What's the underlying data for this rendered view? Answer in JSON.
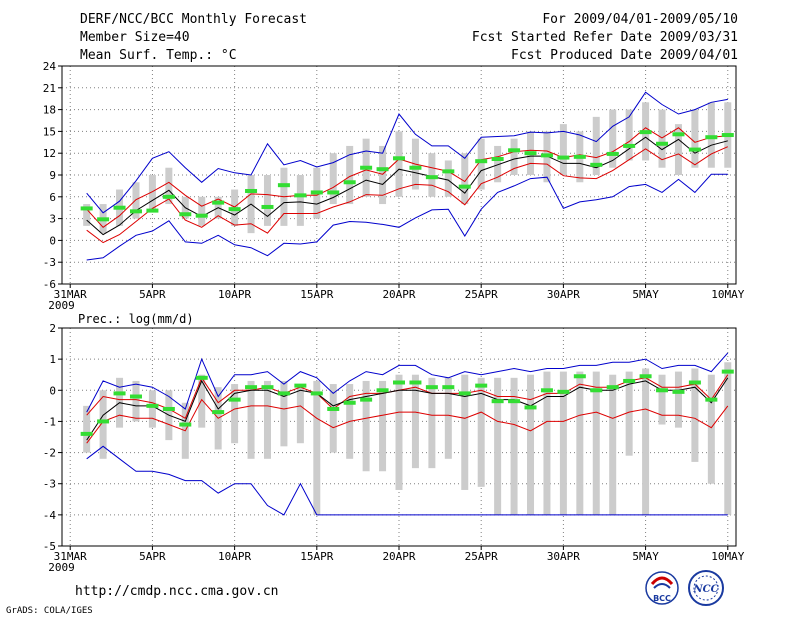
{
  "header": {
    "title": "DERF/NCC/BCC Monthly Forecast",
    "member_size": "Member Size=40",
    "variable": "Mean Surf. Temp.: °C",
    "period": "For 2009/04/01-2009/05/10",
    "fcst_started": "Fcst Started Refer Date 2009/03/31",
    "fcst_produced": "Fcst Produced Date 2009/04/01"
  },
  "footer": {
    "url": "http://cmdp.ncc.cma.gov.cn",
    "credit": "GrADS: COLA/IGES",
    "logo_bcc": "BCC",
    "logo_ncc": "NCC"
  },
  "colors": {
    "mean_line": "#000000",
    "spread_line": "#dd0000",
    "extreme_line": "#0000cc",
    "box": "#cccccc",
    "marker": "#33dd33",
    "grid": "#808080"
  },
  "chart_data": [
    {
      "type": "line",
      "title": "Mean Surf. Temp.: °C",
      "xlabel": "",
      "ylabel": "",
      "x_ticks": [
        "31MAR",
        "5APR",
        "10APR",
        "15APR",
        "20APR",
        "25APR",
        "30APR",
        "5MAY",
        "10MAY"
      ],
      "x_tick_days": [
        0,
        5,
        10,
        15,
        20,
        25,
        30,
        35,
        40
      ],
      "year_label": "2009",
      "ylim": [
        -6,
        24
      ],
      "y_ticks": [
        -6,
        -3,
        0,
        3,
        6,
        9,
        12,
        15,
        18,
        21,
        24
      ],
      "grid": true,
      "days": [
        1,
        2,
        3,
        4,
        5,
        6,
        7,
        8,
        9,
        10,
        11,
        12,
        13,
        14,
        15,
        16,
        17,
        18,
        19,
        20,
        21,
        22,
        23,
        24,
        25,
        26,
        27,
        28,
        29,
        30,
        31,
        32,
        33,
        34,
        35,
        36,
        37,
        38,
        39,
        40
      ],
      "box_low": [
        2,
        1,
        2,
        3,
        4,
        5,
        3,
        2,
        3,
        2,
        1,
        2,
        2,
        2,
        3,
        5,
        5,
        6,
        5,
        6,
        7,
        6,
        6,
        5,
        7,
        8,
        9,
        9,
        8,
        9,
        8,
        9,
        10,
        11,
        11,
        10,
        9,
        10,
        10,
        10
      ],
      "box_high": [
        5,
        5,
        7,
        8,
        9,
        10,
        6,
        6,
        6,
        7,
        9,
        9,
        10,
        9,
        10,
        12,
        13,
        14,
        13,
        15,
        14,
        12,
        11,
        12,
        14,
        13,
        14,
        15,
        15,
        16,
        15,
        17,
        18,
        18,
        19,
        18,
        16,
        18,
        19,
        19
      ],
      "series": [
        {
          "name": "ensemble max",
          "color": "#0000cc",
          "values": [
            6.5,
            3.8,
            5.4,
            8.2,
            11.3,
            12.2,
            10,
            8,
            9.9,
            9.3,
            9,
            13.3,
            10.4,
            11,
            10.1,
            10.7,
            11.8,
            12.3,
            12,
            17.4,
            14.6,
            13,
            13,
            11.3,
            14.2,
            14.3,
            14.4,
            14.9,
            14.8,
            15,
            14.5,
            13.6,
            15.7,
            17,
            20.4,
            18.7,
            17.4,
            18,
            19,
            19.4
          ]
        },
        {
          "name": "upper spread",
          "color": "#dd0000",
          "values": [
            4.3,
            1.8,
            3.4,
            5.6,
            6.7,
            8,
            6.2,
            4.7,
            5.7,
            4.6,
            6.4,
            6.3,
            6,
            6.2,
            6.2,
            7.3,
            8.8,
            9.7,
            9.1,
            11.2,
            10.5,
            10,
            9.5,
            8.1,
            11.1,
            11.5,
            12.2,
            12.4,
            12.3,
            11.4,
            11.8,
            11.4,
            12.2,
            13.6,
            15.5,
            14.1,
            15.5,
            13.5,
            14.2,
            14.4
          ]
        },
        {
          "name": "ensemble mean",
          "color": "#000000",
          "values": [
            2.8,
            0.8,
            2.1,
            4.1,
            5.5,
            6.9,
            4.5,
            3.3,
            4.5,
            3.5,
            5,
            3.3,
            5.2,
            5.3,
            5,
            5.9,
            7.1,
            8.3,
            7.7,
            9.8,
            9.3,
            8.8,
            8.3,
            6.5,
            9.6,
            10.4,
            11.2,
            11.6,
            11.6,
            10.6,
            10.6,
            10,
            11,
            12.6,
            14.2,
            12.5,
            13.9,
            12,
            13.1,
            13.7
          ]
        },
        {
          "name": "lower spread",
          "color": "#dd0000",
          "values": [
            1.4,
            -0.3,
            0.8,
            2.6,
            4.4,
            5.7,
            2.8,
            1.8,
            3.4,
            2.1,
            2.3,
            1,
            3.7,
            3.7,
            3.7,
            4.6,
            5.3,
            6.3,
            6.2,
            7.1,
            7.7,
            7.6,
            6.7,
            4.9,
            7.8,
            8.7,
            9.9,
            10.6,
            10.5,
            8.9,
            8.6,
            8.5,
            9.6,
            11.1,
            12.6,
            11.1,
            11.9,
            10.4,
            11.9,
            12.9
          ]
        },
        {
          "name": "ensemble min",
          "color": "#0000cc",
          "values": [
            -2.7,
            -2.4,
            -0.8,
            0.7,
            1.3,
            2.7,
            -0.2,
            -0.4,
            0.7,
            -0.6,
            -1,
            -2.1,
            -0.4,
            -0.5,
            -0.2,
            2.1,
            2.6,
            2.5,
            2.2,
            1.8,
            3.1,
            4.2,
            4.3,
            0.6,
            4.3,
            6.6,
            7.5,
            8.5,
            8.7,
            4.4,
            5.3,
            5.6,
            6,
            7.4,
            7.7,
            6.6,
            8.4,
            6.6,
            9.1,
            9.1
          ]
        },
        {
          "name": "single run",
          "color": "#33dd33",
          "values": [
            4.4,
            2.9,
            4.5,
            4,
            4.1,
            6,
            3.6,
            3.4,
            5.2,
            4.3,
            6.8,
            4.6,
            7.6,
            6.2,
            6.6,
            6.6,
            8,
            10,
            9.8,
            11.3,
            10,
            8.7,
            9.5,
            7.4,
            10.9,
            11.2,
            12.4,
            12,
            11.7,
            11.4,
            11.5,
            10.4,
            11.9,
            13,
            14.9,
            13.3,
            14.6,
            12.5,
            14.2,
            14.5
          ]
        }
      ]
    },
    {
      "type": "line",
      "title": "Prec.: log(mm/d)",
      "xlabel": "",
      "ylabel": "",
      "x_ticks": [
        "31MAR",
        "5APR",
        "10APR",
        "15APR",
        "20APR",
        "25APR",
        "30APR",
        "5MAY",
        "10MAY"
      ],
      "x_tick_days": [
        0,
        5,
        10,
        15,
        20,
        25,
        30,
        35,
        40
      ],
      "year_label": "2009",
      "ylim": [
        -5,
        2
      ],
      "y_ticks": [
        -5,
        -4,
        -3,
        -2,
        -1,
        0,
        1,
        2
      ],
      "grid": true,
      "days": [
        1,
        2,
        3,
        4,
        5,
        6,
        7,
        8,
        9,
        10,
        11,
        12,
        13,
        14,
        15,
        16,
        17,
        18,
        19,
        20,
        21,
        22,
        23,
        24,
        25,
        26,
        27,
        28,
        29,
        30,
        31,
        32,
        33,
        34,
        35,
        36,
        37,
        38,
        39,
        40
      ],
      "box_low": [
        -2,
        -2.2,
        -1.2,
        -1,
        -1.2,
        -1.6,
        -2.2,
        -1.2,
        -1.9,
        -1.7,
        -2.2,
        -2.2,
        -1.8,
        -1.7,
        -4,
        -2,
        -2.2,
        -2.6,
        -2.6,
        -3.2,
        -2.5,
        -2.5,
        -2.2,
        -3.2,
        -3.1,
        -4,
        -4,
        -4,
        -4,
        -4,
        -4,
        -4,
        -4,
        -2.1,
        -4,
        -1.1,
        -1.2,
        -2.3,
        -3,
        -4
      ],
      "box_high": [
        -0.5,
        0,
        0.4,
        0.3,
        0,
        0,
        -0.4,
        0.5,
        0.1,
        0.2,
        0.3,
        0.3,
        0.3,
        0.2,
        0.3,
        0.2,
        0.2,
        0.3,
        0.3,
        0.5,
        0.5,
        0.4,
        0.4,
        0.5,
        0.4,
        0.4,
        0.4,
        0.5,
        0.6,
        0.6,
        0.6,
        0.6,
        0.5,
        0.6,
        0.7,
        0.5,
        0.6,
        0.7,
        0.5,
        0.9
      ],
      "series": [
        {
          "name": "ensemble max",
          "color": "#0000cc",
          "values": [
            -0.7,
            0.3,
            0.1,
            0.2,
            0.1,
            -0.2,
            -0.6,
            1,
            -0.2,
            0.5,
            0.5,
            0.6,
            0.2,
            0.6,
            0.4,
            -0.1,
            0.3,
            0.6,
            0.5,
            0.8,
            0.8,
            0.5,
            0.4,
            0.6,
            0.5,
            0.6,
            0.7,
            0.6,
            0.7,
            0.7,
            0.8,
            0.8,
            0.9,
            0.9,
            1,
            0.7,
            0.8,
            0.8,
            0.6,
            1.2
          ]
        },
        {
          "name": "upper spread",
          "color": "#dd0000",
          "values": [
            -0.8,
            -0.2,
            -0.3,
            -0.3,
            -0.4,
            -0.6,
            -0.9,
            0.4,
            -0.4,
            0,
            0,
            0.1,
            -0.1,
            0.1,
            -0.1,
            -0.6,
            -0.2,
            -0.1,
            -0.1,
            0,
            0.1,
            -0.1,
            -0.1,
            -0.1,
            0,
            -0.2,
            -0.2,
            -0.3,
            -0.1,
            -0.1,
            0.2,
            0.1,
            0.1,
            0.3,
            0.4,
            0.1,
            0.1,
            0.2,
            -0.3,
            0.5
          ]
        },
        {
          "name": "ensemble mean",
          "color": "#000000",
          "values": [
            -1.6,
            -0.8,
            -0.4,
            -0.5,
            -0.5,
            -0.8,
            -1,
            0.3,
            -0.6,
            -0.1,
            0,
            0,
            -0.2,
            0,
            -0.1,
            -0.5,
            -0.3,
            -0.2,
            -0.1,
            0,
            0,
            -0.1,
            -0.1,
            -0.2,
            -0.1,
            -0.3,
            -0.3,
            -0.5,
            -0.2,
            -0.2,
            0.1,
            0,
            0,
            0.2,
            0.3,
            0,
            0,
            0.1,
            -0.4,
            0.4
          ]
        },
        {
          "name": "lower spread",
          "color": "#dd0000",
          "values": [
            -1.7,
            -1,
            -0.8,
            -0.9,
            -0.9,
            -1.1,
            -1.3,
            -0.3,
            -0.9,
            -0.6,
            -0.5,
            -0.5,
            -0.6,
            -0.5,
            -0.9,
            -1.2,
            -1,
            -0.9,
            -0.8,
            -0.7,
            -0.7,
            -0.8,
            -0.8,
            -0.9,
            -0.7,
            -1,
            -1.1,
            -1.3,
            -1,
            -1,
            -0.8,
            -0.7,
            -0.9,
            -0.7,
            -0.6,
            -0.8,
            -0.8,
            -0.9,
            -1.2,
            -0.5
          ]
        },
        {
          "name": "ensemble min",
          "color": "#0000cc",
          "values": [
            -2.2,
            -1.8,
            -2.2,
            -2.6,
            -2.6,
            -2.7,
            -2.9,
            -2.9,
            -3.3,
            -3,
            -3,
            -3.7,
            -4,
            -3,
            -4,
            -4,
            -4,
            -4,
            -4,
            -4,
            -4,
            -4,
            -4,
            -4,
            -4,
            -4,
            -4,
            -4,
            -4,
            -4,
            -4,
            -4,
            -4,
            -4,
            -4,
            -4,
            -4,
            -4,
            -4,
            -4
          ]
        },
        {
          "name": "single run",
          "color": "#33dd33",
          "values": [
            -1.4,
            -1,
            -0.1,
            -0.2,
            -0.5,
            -0.6,
            -1.1,
            0.4,
            -0.7,
            -0.3,
            0.1,
            0.1,
            -0.1,
            0.15,
            -0.1,
            -0.6,
            -0.4,
            -0.3,
            0,
            0.25,
            0.25,
            0.1,
            0.1,
            -0.1,
            0.15,
            -0.35,
            -0.35,
            -0.55,
            0,
            -0.05,
            0.45,
            0,
            0.1,
            0.3,
            0.45,
            0,
            -0.05,
            0.25,
            -0.3,
            0.6
          ]
        }
      ]
    }
  ]
}
